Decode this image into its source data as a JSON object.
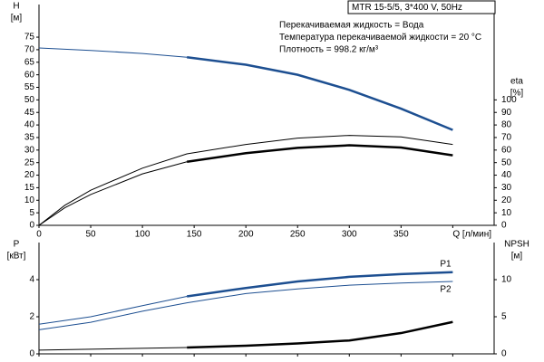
{
  "chart_data": [
    {
      "type": "line",
      "title": "MTR 15-5/5, 3*400 V, 50Hz",
      "annotations": [
        "Перекачиваемая жидкость = Вода",
        "Температура перекачиваемой жидкости = 20 °C",
        "Плотность = 998.2 кг/м³"
      ],
      "y_label": "H",
      "y_unit": "[м]",
      "y2_label": "eta",
      "y2_unit": "[%]",
      "xlim": [
        0,
        440
      ],
      "xticks": [
        0,
        50,
        100,
        150,
        200,
        250,
        300,
        350,
        {
          "value": 400,
          "label": "Q [л/мин]"
        }
      ],
      "show_xtick_labels": true,
      "ylim": [
        0,
        88
      ],
      "yticks": [
        0,
        5,
        10,
        15,
        20,
        25,
        30,
        35,
        40,
        45,
        50,
        55,
        60,
        65,
        70,
        75
      ],
      "y2lim": [
        0,
        176
      ],
      "y2ticks": [
        0,
        10,
        20,
        30,
        40,
        50,
        60,
        70,
        80,
        90,
        100
      ],
      "series": [
        {
          "color": "#1d4f91",
          "width": 1,
          "x": [
            0,
            50,
            100,
            143
          ],
          "values": [
            70.7,
            69.7,
            68.5,
            67
          ]
        },
        {
          "color": "#1d4f91",
          "width": 2.5,
          "x": [
            143,
            200,
            250,
            300,
            350,
            400
          ],
          "values": [
            67,
            64,
            60,
            54,
            46.5,
            38
          ]
        },
        {
          "color": "#000000",
          "width": 1,
          "axis": "y2",
          "x": [
            0,
            25,
            50,
            100,
            143,
            200,
            250,
            300,
            350,
            400
          ],
          "values": [
            0,
            16,
            28,
            45.6,
            57,
            64.5,
            69.5,
            71.7,
            70.5,
            64.5
          ]
        },
        {
          "color": "#000000",
          "width": 1,
          "axis": "y2",
          "x": [
            0,
            25,
            50,
            100,
            143
          ],
          "values": [
            0,
            14,
            24.6,
            41,
            50.7
          ]
        },
        {
          "color": "#000000",
          "width": 2.5,
          "axis": "y2",
          "x": [
            143,
            200,
            250,
            300,
            350,
            400
          ],
          "values": [
            50.7,
            57.5,
            61.8,
            63.8,
            62,
            55.8
          ]
        }
      ]
    },
    {
      "type": "line",
      "y_label": "P",
      "y_unit": "[кВт]",
      "y2_label": "NPSH",
      "y2_unit": "[м]",
      "xlim": [
        0,
        440
      ],
      "xticks": [
        0,
        50,
        100,
        150,
        200,
        250,
        300,
        350,
        400
      ],
      "show_xtick_labels": false,
      "ylim": [
        0,
        6
      ],
      "yticks": [
        0,
        2,
        4
      ],
      "y2lim": [
        0,
        15
      ],
      "y2ticks": [
        0,
        5,
        10
      ],
      "series": [
        {
          "color": "#1d4f91",
          "width": 1,
          "x": [
            0,
            50,
            100,
            143
          ],
          "values": [
            1.6,
            2.0,
            2.6,
            3.1
          ]
        },
        {
          "name": "P1",
          "color": "#1d4f91",
          "width": 2.5,
          "x": [
            143,
            200,
            250,
            300,
            350,
            400
          ],
          "values": [
            3.1,
            3.55,
            3.9,
            4.15,
            4.3,
            4.4
          ]
        },
        {
          "name": "P2",
          "color": "#1d4f91",
          "width": 1,
          "x": [
            0,
            50,
            100,
            143,
            200,
            250,
            300,
            350,
            400
          ],
          "values": [
            1.3,
            1.7,
            2.3,
            2.75,
            3.25,
            3.5,
            3.7,
            3.82,
            3.9
          ]
        },
        {
          "color": "#000000",
          "width": 1,
          "axis": "y2",
          "x": [
            0,
            143
          ],
          "values": [
            0.5,
            0.85
          ]
        },
        {
          "color": "#000000",
          "width": 2.5,
          "axis": "y2",
          "x": [
            143,
            200,
            250,
            300,
            350,
            400
          ],
          "values": [
            0.85,
            1.1,
            1.4,
            1.8,
            2.8,
            4.3
          ]
        }
      ]
    }
  ]
}
